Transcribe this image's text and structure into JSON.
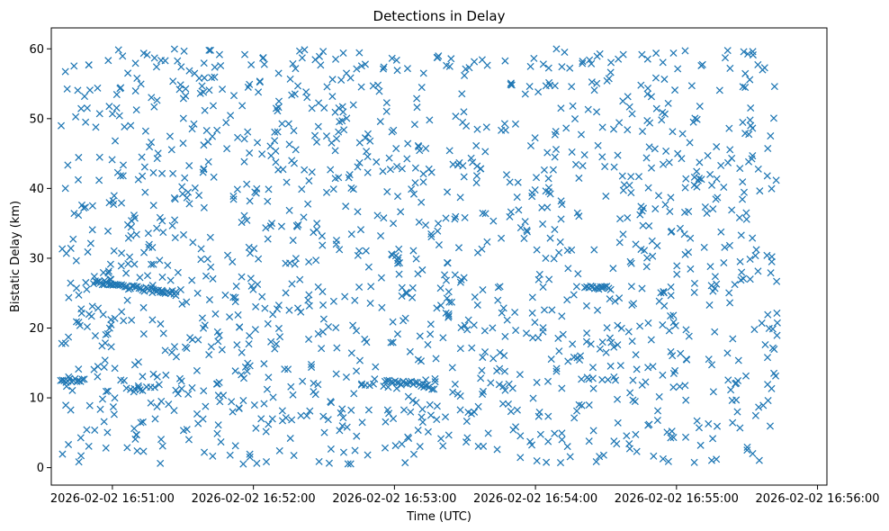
{
  "chart_data": {
    "type": "scatter",
    "title": "Detections in Delay",
    "xlabel": "Time (UTC)",
    "ylabel": "Bistatic Delay (km)",
    "marker": "x",
    "color": "#1f77b4",
    "grid": false,
    "xlim_seconds": [
      -26,
      304
    ],
    "ylim": [
      -2.5,
      63
    ],
    "x_ticks": [
      {
        "value": 0,
        "label": "2026-02-02 16:51:00"
      },
      {
        "value": 60,
        "label": "2026-02-02 16:52:00"
      },
      {
        "value": 120,
        "label": "2026-02-02 16:53:00"
      },
      {
        "value": 180,
        "label": "2026-02-02 16:54:00"
      },
      {
        "value": 240,
        "label": "2026-02-02 16:55:00"
      },
      {
        "value": 300,
        "label": "2026-02-02 16:56:00"
      }
    ],
    "y_ticks": [
      {
        "value": 0,
        "label": "0"
      },
      {
        "value": 10,
        "label": "10"
      },
      {
        "value": 20,
        "label": "20"
      },
      {
        "value": 30,
        "label": "30"
      },
      {
        "value": 40,
        "label": "40"
      },
      {
        "value": 50,
        "label": "50"
      },
      {
        "value": 60,
        "label": "60"
      }
    ],
    "series": [
      {
        "name": "detections",
        "time_range_seconds": [
          -22,
          283
        ],
        "delay_range_km": [
          0.5,
          60
        ],
        "random_points": 1450,
        "tracks": [
          {
            "t": [
              -22,
              -12
            ],
            "delay": [
              12.5,
              12.5
            ],
            "count": 14
          },
          {
            "t": [
              -8,
              27
            ],
            "delay": [
              26.5,
              25.0
            ],
            "count": 48
          },
          {
            "t": [
              6,
              18
            ],
            "delay": [
              11.3,
              11.3
            ],
            "count": 8
          },
          {
            "t": [
              116,
              134
            ],
            "delay": [
              12.3,
              11.9
            ],
            "count": 22
          },
          {
            "t": [
              201,
              212
            ],
            "delay": [
              25.8,
              25.8
            ],
            "count": 14
          }
        ]
      }
    ]
  }
}
